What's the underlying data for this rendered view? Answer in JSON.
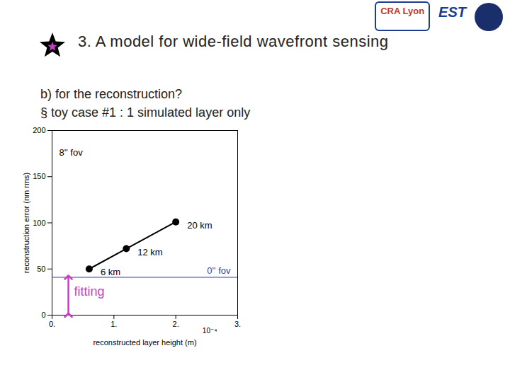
{
  "slide": {
    "heading": "3. A model for wide-field wavefront sensing",
    "lines": [
      "b) for the reconstruction?",
      "§  toy case #1 : 1 simulated layer only"
    ],
    "logos": [
      "CRA Lyon",
      "EST"
    ]
  },
  "chart_data": {
    "type": "line",
    "x_label": "reconstructed layer height (m)",
    "y_label": "reconstruction error (nm rms)",
    "x_multiplier": "10⁻⁴",
    "x": [
      0.6,
      1.2,
      2.0
    ],
    "series": [
      {
        "name": "8'' fov",
        "color": "#000000",
        "marker": "circle",
        "line_style": "solid",
        "values": [
          50,
          72,
          101
        ],
        "point_labels": [
          "6 km",
          "12 km",
          "20 km"
        ]
      }
    ],
    "reference": {
      "name": "0'' fov",
      "value": 41,
      "color": "#3a3ab8"
    },
    "fitting": {
      "text": "fitting",
      "color": "#c83cc8",
      "from": 0,
      "to": 41
    },
    "xlim": [
      0,
      3
    ],
    "xticks": [
      {
        "value": 0,
        "label": "0."
      },
      {
        "value": 1,
        "label": "1."
      },
      {
        "value": 2,
        "label": "2."
      },
      {
        "value": 3,
        "label": "3."
      }
    ],
    "ylim": [
      0,
      200
    ],
    "yticks": [
      0,
      50,
      100,
      150,
      200
    ],
    "grid": false
  }
}
